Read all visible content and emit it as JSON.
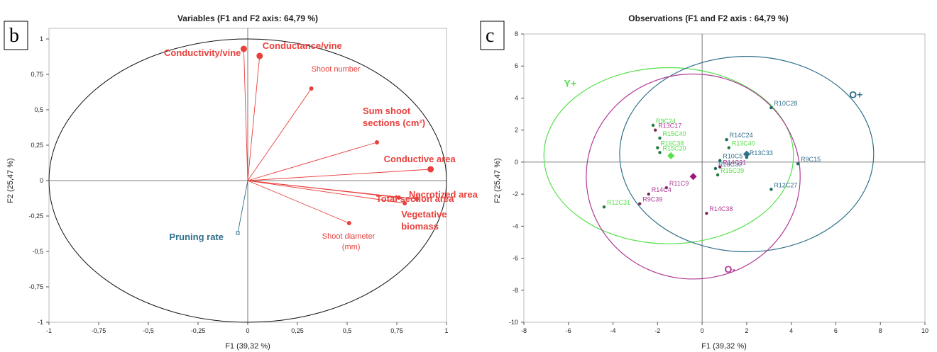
{
  "chart_data": [
    {
      "panel": "b",
      "type": "scatter",
      "title": "Variables (F1 and F2 axis: 64,79 %)",
      "xlabel": "F1 (39,32 %)",
      "ylabel": "F2 (25,47 %)",
      "xlim": [
        -1,
        1
      ],
      "ylim": [
        -1,
        1
      ],
      "x_ticks": [
        "-1",
        "-0,75",
        "-0,5",
        "-0,25",
        "0",
        "0,25",
        "0,5",
        "0,75",
        "1"
      ],
      "y_ticks": [
        "1",
        "0,75",
        "0,5",
        "0,25",
        "0",
        "-0,25",
        "-0,5",
        "-0,75",
        "-1"
      ],
      "circle": true,
      "variables": [
        {
          "label": "Conductivity/vine",
          "x": -0.02,
          "y": 0.93,
          "color": "#e8403c",
          "bold": true,
          "size": "large"
        },
        {
          "label": "Conductance/vine",
          "x": 0.06,
          "y": 0.88,
          "color": "#e8403c",
          "bold": true,
          "size": "large"
        },
        {
          "label": "Shoot number",
          "x": 0.32,
          "y": 0.65,
          "color": "#e8403c",
          "bold": false,
          "size": "small"
        },
        {
          "label": "Sum shoot sections (cm²)",
          "x": 0.65,
          "y": 0.27,
          "color": "#e8403c",
          "bold": true,
          "size": "small"
        },
        {
          "label": "Conductive area",
          "x": 0.92,
          "y": 0.08,
          "color": "#e8403c",
          "bold": true,
          "size": "large"
        },
        {
          "label": "Total section area",
          "x": 0.76,
          "y": -0.12,
          "color": "#e8403c",
          "bold": true,
          "size": "small"
        },
        {
          "label": "Necrotized area",
          "x": 0.85,
          "y": -0.13,
          "color": "#e8403c",
          "bold": true,
          "size": "small"
        },
        {
          "label": "Vegetative biomass",
          "x": 0.79,
          "y": -0.16,
          "color": "#e8403c",
          "bold": true,
          "size": "small"
        },
        {
          "label": "Shoot diameter (mm)",
          "x": 0.51,
          "y": -0.3,
          "color": "#e8403c",
          "bold": false,
          "size": "small"
        },
        {
          "label": "Pruning rate",
          "x": -0.05,
          "y": -0.37,
          "color": "#31708c",
          "bold": true,
          "size": "square"
        }
      ]
    },
    {
      "panel": "c",
      "type": "scatter",
      "title": "Observations (F1 and F2 axis : 64,79 %)",
      "xlabel": "F1 (39,32 %)",
      "ylabel": "F2 (25,47 %)",
      "xlim": [
        -8,
        10
      ],
      "ylim": [
        -10,
        8
      ],
      "x_ticks": [
        "-8",
        "-6",
        "-4",
        "-2",
        "0",
        "2",
        "4",
        "6",
        "8",
        "10"
      ],
      "y_ticks": [
        "8",
        "6",
        "4",
        "2",
        "0",
        "-2",
        "-4",
        "-6",
        "-8",
        "-10"
      ],
      "groups": [
        {
          "name": "Y+",
          "color": "#55e04a",
          "center": [
            -1.5,
            0.4
          ],
          "rx": 5.6,
          "ry": 5.5
        },
        {
          "name": "O+",
          "color": "#31708c",
          "center": [
            2.0,
            0.5
          ],
          "rx": 5.7,
          "ry": 6.1
        },
        {
          "name": "O-",
          "color": "#b03a96",
          "center": [
            -0.4,
            -0.9
          ],
          "rx": 4.8,
          "ry": 6.4
        }
      ],
      "observations": [
        {
          "label": "R9C24",
          "x": -2.2,
          "y": 2.3,
          "color": "#55e04a"
        },
        {
          "label": "R13C17",
          "x": -2.1,
          "y": 2.0,
          "color": "#b03a96"
        },
        {
          "label": "R15C40",
          "x": -1.9,
          "y": 1.5,
          "color": "#55e04a"
        },
        {
          "label": "R16C38",
          "x": -2.0,
          "y": 0.9,
          "color": "#55e04a"
        },
        {
          "label": "R15C20",
          "x": -1.9,
          "y": 0.6,
          "color": "#55e04a"
        },
        {
          "label": "R10C28",
          "x": 3.1,
          "y": 3.4,
          "color": "#31708c"
        },
        {
          "label": "R14C24",
          "x": 1.1,
          "y": 1.4,
          "color": "#31708c"
        },
        {
          "label": "R13C40",
          "x": 1.2,
          "y": 0.9,
          "color": "#55e04a"
        },
        {
          "label": "R13C33",
          "x": 2.0,
          "y": 0.3,
          "color": "#31708c"
        },
        {
          "label": "R10C5",
          "x": 0.8,
          "y": 0.1,
          "color": "#31708c"
        },
        {
          "label": "R18C30",
          "x": 0.6,
          "y": -0.4,
          "color": "#31708c"
        },
        {
          "label": "R14C31",
          "x": 0.8,
          "y": -0.3,
          "color": "#b03a96"
        },
        {
          "label": "R15C39",
          "x": 0.7,
          "y": -0.8,
          "color": "#55e04a"
        },
        {
          "label": "R9C15",
          "x": 4.3,
          "y": -0.1,
          "color": "#31708c"
        },
        {
          "label": "R12C27",
          "x": 3.1,
          "y": -1.7,
          "color": "#31708c"
        },
        {
          "label": "R11C9",
          "x": -1.6,
          "y": -1.6,
          "color": "#b03a96"
        },
        {
          "label": "R14C4",
          "x": -2.4,
          "y": -2.0,
          "color": "#b03a96"
        },
        {
          "label": "R9C39",
          "x": -2.8,
          "y": -2.6,
          "color": "#b03a96"
        },
        {
          "label": "R12C31",
          "x": -4.4,
          "y": -2.8,
          "color": "#55e04a"
        },
        {
          "label": "R14C38",
          "x": 0.2,
          "y": -3.2,
          "color": "#b03a96"
        }
      ],
      "centroids": [
        {
          "group": "Y+",
          "x": -1.4,
          "y": 0.4,
          "color": "#55e04a"
        },
        {
          "group": "O+",
          "x": 2.0,
          "y": 0.5,
          "color": "#31708c"
        },
        {
          "group": "O-",
          "x": -0.4,
          "y": -0.9,
          "color": "#a0157a"
        }
      ]
    }
  ],
  "panel_labels": {
    "b": "b",
    "c": "c"
  }
}
